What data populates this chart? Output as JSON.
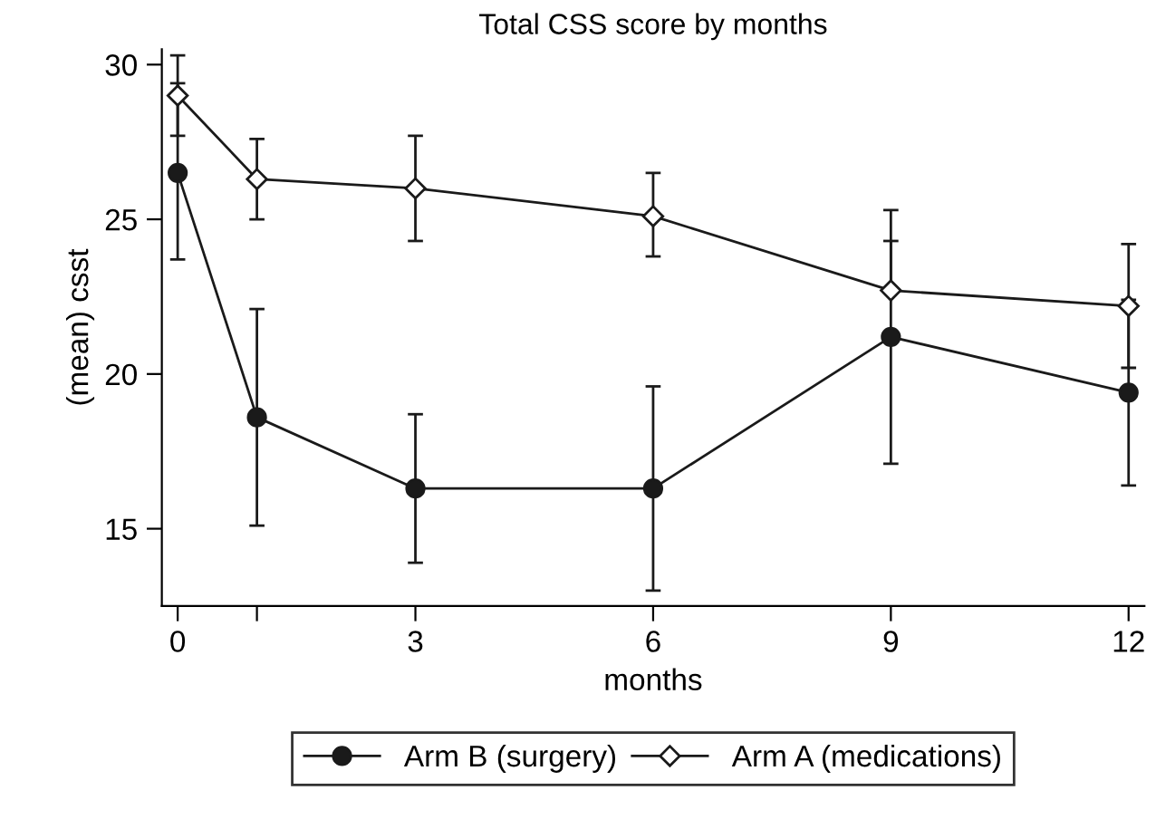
{
  "chart_data": {
    "type": "line",
    "title": "Total CSS score by months",
    "xlabel": "months",
    "ylabel": "(mean) csst",
    "x": [
      0,
      1,
      3,
      6,
      9,
      12
    ],
    "series": [
      {
        "name": "Arm B (surgery)",
        "color": "#1a1a1a",
        "marker": "circle",
        "values": [
          26.5,
          18.6,
          16.3,
          16.3,
          21.2,
          19.4
        ],
        "errors": [
          [
            23.7,
            29.4
          ],
          [
            15.1,
            22.1
          ],
          [
            13.9,
            18.7
          ],
          [
            13.0,
            19.6
          ],
          [
            17.1,
            25.3
          ],
          [
            16.4,
            22.4
          ]
        ]
      },
      {
        "name": "Arm A (medications)",
        "color": "#1a1a1a",
        "marker": "diamond",
        "values": [
          29.0,
          26.3,
          26.0,
          25.1,
          22.7,
          22.2
        ],
        "errors": [
          [
            27.7,
            30.3
          ],
          [
            25.0,
            27.6
          ],
          [
            24.3,
            27.7
          ],
          [
            23.8,
            26.5
          ],
          [
            22.7,
            24.3
          ],
          [
            20.2,
            24.2
          ]
        ]
      }
    ],
    "xlim": [
      -0.2,
      12.2
    ],
    "ylim": [
      12.5,
      30.5
    ],
    "xticks": [
      0,
      {
        "value": 1,
        "label": null
      },
      3,
      6,
      9,
      12
    ],
    "yticks": [
      15,
      20,
      25,
      30
    ],
    "grid": false,
    "legend": "bottom"
  }
}
